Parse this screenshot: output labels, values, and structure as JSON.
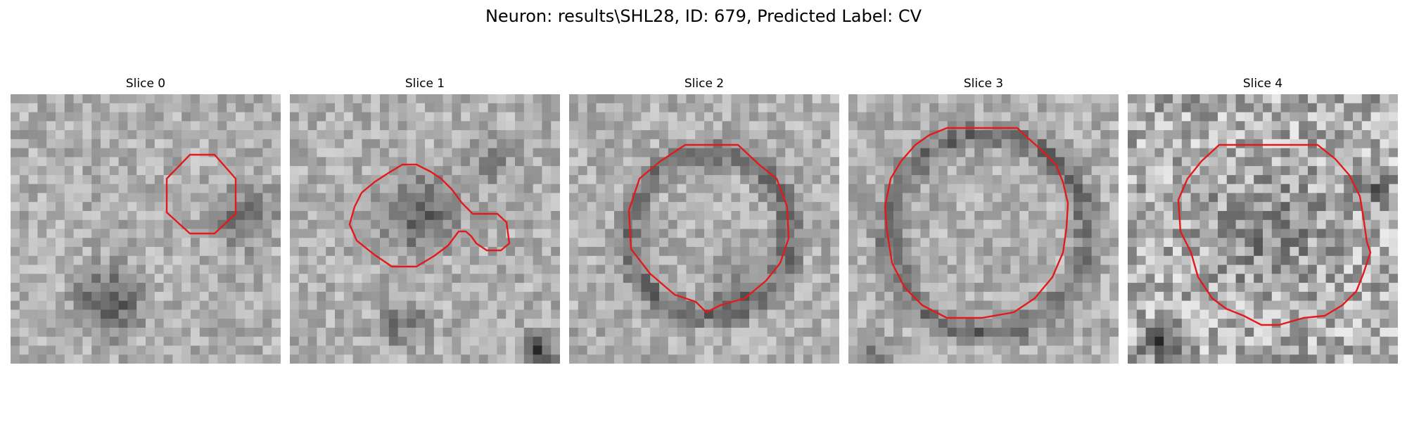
{
  "figure": {
    "title": "Neuron: results\\SHL28, ID: 679, Predicted Label: CV",
    "colors": {
      "contour": "#e31a1c",
      "background": "#ffffff"
    }
  },
  "panels": [
    {
      "title": "Slice 0",
      "seed": 11,
      "dark_spots": "contour at upper-right; dark blob at lower-left"
    },
    {
      "title": "Slice 1",
      "seed": 23,
      "dark_spots": "two-lobed contour across center"
    },
    {
      "title": "Slice 2",
      "seed": 37,
      "dark_spots": "round contour with dark ring"
    },
    {
      "title": "Slice 3",
      "seed": 51,
      "dark_spots": "large round contour"
    },
    {
      "title": "Slice 4",
      "seed": 67,
      "dark_spots": "large round contour on noisy field"
    }
  ]
}
